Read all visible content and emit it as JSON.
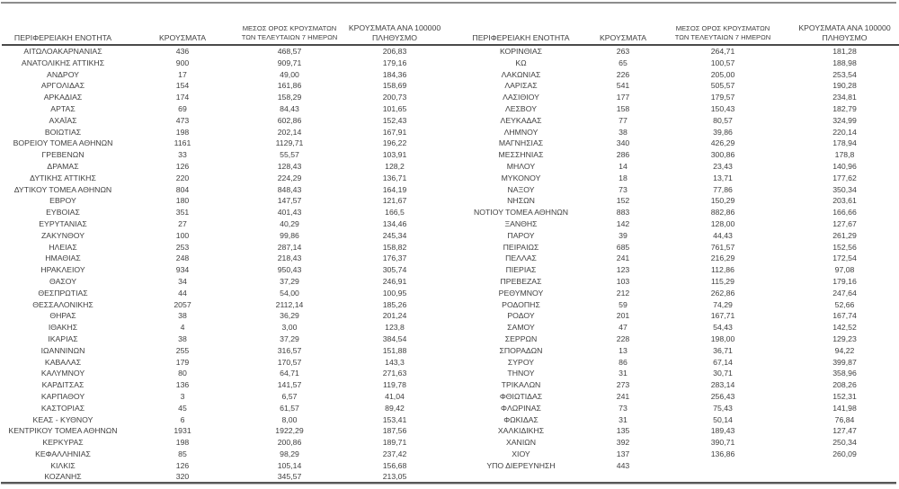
{
  "colors": {
    "text": "#3f3f3f",
    "header_rule": "#4a4a4a",
    "top_rule": "#8c8c8c",
    "bottom_rule": "#585858",
    "background": "#ffffff"
  },
  "table": {
    "headers": {
      "region": "ΠΕΡΙΦΕΡΕΙΑΚΗ ΕΝΟΤΗΤΑ",
      "cases": "ΚΡΟΥΣΜΑΤΑ",
      "avg7_line1": "ΜΕΣΟΣ ΟΡΟΣ ΚΡΟΥΣΜΑΤΩΝ",
      "avg7_line2": "ΤΩΝ ΤΕΛΕΥΤΑΙΩΝ 7 ΗΜΕΡΩΝ",
      "per100k_line1": "ΚΡΟΥΣΜΑΤΑ ΑΝΑ 100000",
      "per100k_line2": "ΠΛΗΘΥΣΜΟ"
    },
    "left_rows": [
      [
        "ΑΙΤΩΛΟΑΚΑΡΝΑΝΙΑΣ",
        "436",
        "468,57",
        "206,83"
      ],
      [
        "ΑΝΑΤΟΛΙΚΗΣ ΑΤΤΙΚΗΣ",
        "900",
        "909,71",
        "179,16"
      ],
      [
        "ΑΝΔΡΟΥ",
        "17",
        "49,00",
        "184,36"
      ],
      [
        "ΑΡΓΟΛΙΔΑΣ",
        "154",
        "161,86",
        "158,69"
      ],
      [
        "ΑΡΚΑΔΙΑΣ",
        "174",
        "158,29",
        "200,73"
      ],
      [
        "ΑΡΤΑΣ",
        "69",
        "84,43",
        "101,65"
      ],
      [
        "ΑΧΑΪΑΣ",
        "473",
        "602,86",
        "152,43"
      ],
      [
        "ΒΟΙΩΤΙΑΣ",
        "198",
        "202,14",
        "167,91"
      ],
      [
        "ΒΟΡΕΙΟΥ ΤΟΜΕΑ ΑΘΗΝΩΝ",
        "1161",
        "1129,71",
        "196,22"
      ],
      [
        "ΓΡΕΒΕΝΩΝ",
        "33",
        "55,57",
        "103,91"
      ],
      [
        "ΔΡΑΜΑΣ",
        "126",
        "128,43",
        "128,2"
      ],
      [
        "ΔΥΤΙΚΗΣ ΑΤΤΙΚΗΣ",
        "220",
        "224,29",
        "136,71"
      ],
      [
        "ΔΥΤΙΚΟΥ ΤΟΜΕΑ ΑΘΗΝΩΝ",
        "804",
        "848,43",
        "164,19"
      ],
      [
        "ΕΒΡΟΥ",
        "180",
        "147,57",
        "121,67"
      ],
      [
        "ΕΥΒΟΙΑΣ",
        "351",
        "401,43",
        "166,5"
      ],
      [
        "ΕΥΡΥΤΑΝΙΑΣ",
        "27",
        "40,29",
        "134,46"
      ],
      [
        "ΖΑΚΥΝΘΟΥ",
        "100",
        "99,86",
        "245,34"
      ],
      [
        "ΗΛΕΙΑΣ",
        "253",
        "287,14",
        "158,82"
      ],
      [
        "ΗΜΑΘΙΑΣ",
        "248",
        "218,43",
        "176,37"
      ],
      [
        "ΗΡΑΚΛΕΙΟΥ",
        "934",
        "950,43",
        "305,74"
      ],
      [
        "ΘΑΣΟΥ",
        "34",
        "37,29",
        "246,91"
      ],
      [
        "ΘΕΣΠΡΩΤΙΑΣ",
        "44",
        "54,00",
        "100,95"
      ],
      [
        "ΘΕΣΣΑΛΟΝΙΚΗΣ",
        "2057",
        "2112,14",
        "185,26"
      ],
      [
        "ΘΗΡΑΣ",
        "38",
        "36,29",
        "201,24"
      ],
      [
        "ΙΘΑΚΗΣ",
        "4",
        "3,00",
        "123,8"
      ],
      [
        "ΙΚΑΡΙΑΣ",
        "38",
        "37,29",
        "384,54"
      ],
      [
        "ΙΩΑΝΝΙΝΩΝ",
        "255",
        "316,57",
        "151,88"
      ],
      [
        "ΚΑΒΑΛΑΣ",
        "179",
        "170,57",
        "143,3"
      ],
      [
        "ΚΑΛΥΜΝΟΥ",
        "80",
        "64,71",
        "271,63"
      ],
      [
        "ΚΑΡΔΙΤΣΑΣ",
        "136",
        "141,57",
        "119,78"
      ],
      [
        "ΚΑΡΠΑΘΟΥ",
        "3",
        "6,57",
        "41,04"
      ],
      [
        "ΚΑΣΤΟΡΙΑΣ",
        "45",
        "61,57",
        "89,42"
      ],
      [
        "ΚΕΑΣ - ΚΥΘΝΟΥ",
        "6",
        "8,00",
        "153,41"
      ],
      [
        "ΚΕΝΤΡΙΚΟΥ ΤΟΜΕΑ ΑΘΗΝΩΝ",
        "1931",
        "1922,29",
        "187,56"
      ],
      [
        "ΚΕΡΚΥΡΑΣ",
        "198",
        "200,86",
        "189,71"
      ],
      [
        "ΚΕΦΑΛΛΗΝΙΑΣ",
        "85",
        "98,29",
        "237,42"
      ],
      [
        "ΚΙΛΚΙΣ",
        "126",
        "105,14",
        "156,68"
      ],
      [
        "ΚΟΖΑΝΗΣ",
        "320",
        "345,57",
        "213,05"
      ]
    ],
    "right_rows": [
      [
        "ΚΟΡΙΝΘΙΑΣ",
        "263",
        "264,71",
        "181,28"
      ],
      [
        "ΚΩ",
        "65",
        "100,57",
        "188,98"
      ],
      [
        "ΛΑΚΩΝΙΑΣ",
        "226",
        "205,00",
        "253,54"
      ],
      [
        "ΛΑΡΙΣΑΣ",
        "541",
        "505,57",
        "190,28"
      ],
      [
        "ΛΑΣΙΘΙΟΥ",
        "177",
        "179,57",
        "234,81"
      ],
      [
        "ΛΕΣΒΟΥ",
        "158",
        "150,43",
        "182,79"
      ],
      [
        "ΛΕΥΚΑΔΑΣ",
        "77",
        "80,57",
        "324,99"
      ],
      [
        "ΛΗΜΝΟΥ",
        "38",
        "39,86",
        "220,14"
      ],
      [
        "ΜΑΓΝΗΣΙΑΣ",
        "340",
        "426,29",
        "178,94"
      ],
      [
        "ΜΕΣΣΗΝΙΑΣ",
        "286",
        "300,86",
        "178,8"
      ],
      [
        "ΜΗΛΟΥ",
        "14",
        "23,43",
        "140,96"
      ],
      [
        "ΜΥΚΟΝΟΥ",
        "18",
        "13,71",
        "177,62"
      ],
      [
        "ΝΑΞΟΥ",
        "73",
        "77,86",
        "350,34"
      ],
      [
        "ΝΗΣΩΝ",
        "152",
        "150,29",
        "203,61"
      ],
      [
        "ΝΟΤΙΟΥ ΤΟΜΕΑ ΑΘΗΝΩΝ",
        "883",
        "882,86",
        "166,66"
      ],
      [
        "ΞΑΝΘΗΣ",
        "142",
        "128,00",
        "127,67"
      ],
      [
        "ΠΑΡΟΥ",
        "39",
        "44,43",
        "261,29"
      ],
      [
        "ΠΕΙΡΑΙΩΣ",
        "685",
        "761,57",
        "152,56"
      ],
      [
        "ΠΕΛΛΑΣ",
        "241",
        "216,29",
        "172,54"
      ],
      [
        "ΠΙΕΡΙΑΣ",
        "123",
        "112,86",
        "97,08"
      ],
      [
        "ΠΡΕΒΕΖΑΣ",
        "103",
        "115,29",
        "179,16"
      ],
      [
        "ΡΕΘΥΜΝΟΥ",
        "212",
        "262,86",
        "247,64"
      ],
      [
        "ΡΟΔΟΠΗΣ",
        "59",
        "74,29",
        "52,66"
      ],
      [
        "ΡΟΔΟΥ",
        "201",
        "167,71",
        "167,74"
      ],
      [
        "ΣΑΜΟΥ",
        "47",
        "54,43",
        "142,52"
      ],
      [
        "ΣΕΡΡΩΝ",
        "228",
        "198,00",
        "129,23"
      ],
      [
        "ΣΠΟΡΑΔΩΝ",
        "13",
        "36,71",
        "94,22"
      ],
      [
        "ΣΥΡΟΥ",
        "86",
        "67,14",
        "399,87"
      ],
      [
        "ΤΗΝΟΥ",
        "31",
        "30,71",
        "358,96"
      ],
      [
        "ΤΡΙΚΑΛΩΝ",
        "273",
        "283,14",
        "208,26"
      ],
      [
        "ΦΘΙΩΤΙΔΑΣ",
        "241",
        "256,43",
        "152,31"
      ],
      [
        "ΦΛΩΡΙΝΑΣ",
        "73",
        "75,43",
        "141,98"
      ],
      [
        "ΦΩΚΙΔΑΣ",
        "31",
        "50,14",
        "76,84"
      ],
      [
        "ΧΑΛΚΙΔΙΚΗΣ",
        "135",
        "189,43",
        "127,47"
      ],
      [
        "ΧΑΝΙΩΝ",
        "392",
        "390,71",
        "250,34"
      ],
      [
        "ΧΙΟΥ",
        "137",
        "136,86",
        "260,09"
      ],
      [
        "ΥΠΟ ΔΙΕΡΕΥΝΗΣΗ",
        "443",
        "",
        ""
      ]
    ]
  }
}
